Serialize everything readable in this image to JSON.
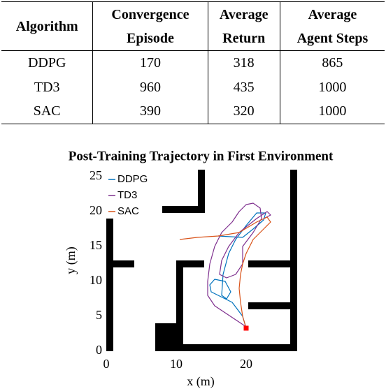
{
  "table": {
    "header": [
      [
        "Algorithm"
      ],
      [
        "Convergence",
        "Episode"
      ],
      [
        "Average",
        "Return"
      ],
      [
        "Average",
        "Agent Steps"
      ]
    ],
    "rows": [
      [
        "DDPG",
        170,
        318,
        865
      ],
      [
        "TD3",
        960,
        435,
        1000
      ],
      [
        "SAC",
        390,
        320,
        1000
      ]
    ]
  },
  "chart_data": {
    "type": "line",
    "title": "Post-Training Trajectory in First Environment",
    "x_label": "x (m)",
    "y_label": "y (m)",
    "xlim": [
      0,
      27
    ],
    "ylim": [
      0,
      26
    ],
    "xticks": [
      0,
      10,
      20
    ],
    "yticks": [
      0,
      5,
      10,
      15,
      20,
      25
    ],
    "grid": false,
    "legend": "upper left",
    "series": [
      {
        "name": "DDPG",
        "color": "#0072bd",
        "x": [
          20,
          19.5,
          18,
          16,
          15,
          14.8,
          15.5,
          17,
          17.8,
          17.2,
          16.5,
          16.7,
          17.5,
          18.5,
          20,
          21.5,
          22.8,
          22.5,
          21,
          19.5,
          16
        ],
        "values": [
          3.3,
          5,
          7,
          8,
          8.5,
          9.5,
          10.3,
          10,
          8.5,
          7.5,
          8,
          11,
          14,
          16,
          18,
          19.8,
          19.8,
          18.8,
          17.5,
          16.3,
          16.5
        ]
      },
      {
        "name": "TD3",
        "color": "#7e2f8e",
        "x": [
          20,
          18.5,
          17,
          15.5,
          14.5,
          14.5,
          14.8,
          15.5,
          16.5,
          18,
          19,
          20,
          21,
          22,
          22.2,
          21,
          19.5,
          19.5,
          18.5,
          17.2,
          16.2,
          16.5,
          17.5,
          19,
          21.5,
          23,
          23.5,
          22.5
        ],
        "values": [
          3.5,
          4.5,
          5.5,
          6.5,
          8,
          10,
          12.5,
          15,
          17,
          18.5,
          20,
          21,
          21.2,
          20.5,
          19,
          17,
          15,
          12.5,
          11,
          10.5,
          11,
          13,
          15,
          17,
          19,
          20,
          19.5,
          19
        ]
      },
      {
        "name": "SAC",
        "color": "#d95319",
        "x": [
          20,
          19.5,
          19.2,
          19,
          19.2,
          19.5,
          20,
          21,
          22.5,
          23.5,
          23,
          21.5,
          19,
          16,
          13,
          10.5
        ],
        "values": [
          3.3,
          5,
          7,
          9,
          11,
          12.5,
          14,
          16,
          17.5,
          18.5,
          19.2,
          18.5,
          17,
          16.5,
          16.3,
          16
        ]
      }
    ]
  }
}
